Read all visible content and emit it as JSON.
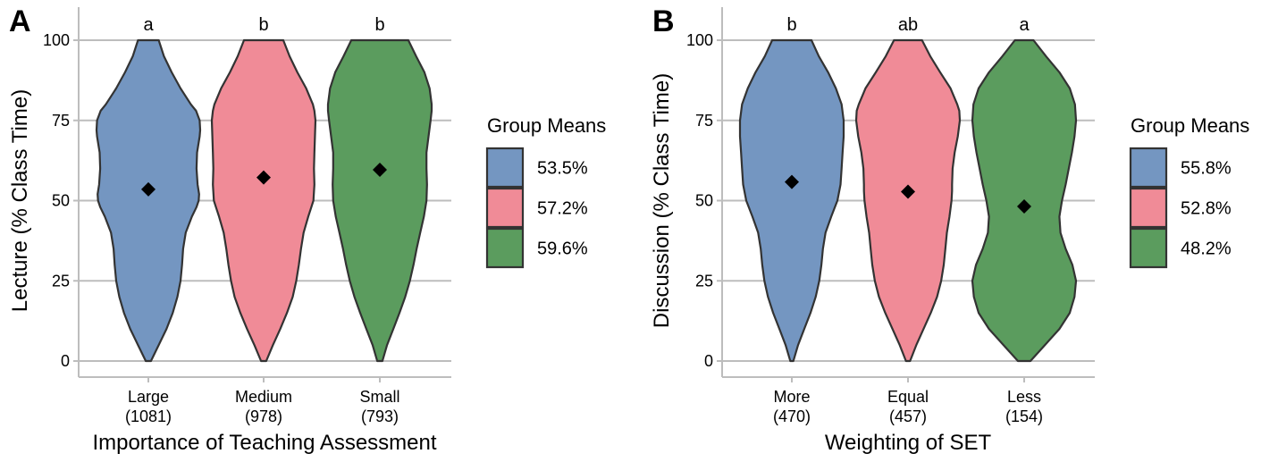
{
  "chart_data": [
    {
      "panel": "A",
      "type": "violin",
      "ylabel": "Lecture (% Class Time)",
      "xlabel": "Importance of Teaching Assessment",
      "ylim": [
        0,
        100
      ],
      "y_ticks": [
        "0",
        "25",
        "50",
        "75",
        "100"
      ],
      "grid": "horizontal",
      "legend_position": "right",
      "legend_title": "Group Means",
      "categories": [
        {
          "label": "Large",
          "n": "(1081)",
          "sig": "a",
          "mean": 53.5,
          "mean_label": "53.5%",
          "color": "#7496C1",
          "profile": [
            [
              0,
              0.05
            ],
            [
              5,
              0.2
            ],
            [
              10,
              0.35
            ],
            [
              15,
              0.47
            ],
            [
              20,
              0.56
            ],
            [
              25,
              0.62
            ],
            [
              30,
              0.65
            ],
            [
              35,
              0.67
            ],
            [
              40,
              0.72
            ],
            [
              45,
              0.84
            ],
            [
              48,
              0.93
            ],
            [
              50,
              0.97
            ],
            [
              52,
              0.98
            ],
            [
              55,
              0.95
            ],
            [
              60,
              0.93
            ],
            [
              65,
              0.94
            ],
            [
              70,
              0.99
            ],
            [
              72,
              1.0
            ],
            [
              75,
              0.99
            ],
            [
              78,
              0.92
            ],
            [
              80,
              0.82
            ],
            [
              85,
              0.62
            ],
            [
              90,
              0.45
            ],
            [
              95,
              0.3
            ],
            [
              100,
              0.2
            ]
          ]
        },
        {
          "label": "Medium",
          "n": "(978)",
          "sig": "b",
          "mean": 57.2,
          "mean_label": "57.2%",
          "color": "#F08B97",
          "profile": [
            [
              0,
              0.05
            ],
            [
              5,
              0.18
            ],
            [
              10,
              0.32
            ],
            [
              15,
              0.45
            ],
            [
              20,
              0.56
            ],
            [
              25,
              0.63
            ],
            [
              30,
              0.68
            ],
            [
              35,
              0.72
            ],
            [
              40,
              0.77
            ],
            [
              45,
              0.86
            ],
            [
              48,
              0.92
            ],
            [
              50,
              0.96
            ],
            [
              55,
              0.98
            ],
            [
              60,
              0.97
            ],
            [
              65,
              0.98
            ],
            [
              70,
              0.99
            ],
            [
              75,
              1.0
            ],
            [
              78,
              0.98
            ],
            [
              80,
              0.95
            ],
            [
              85,
              0.82
            ],
            [
              90,
              0.65
            ],
            [
              95,
              0.5
            ],
            [
              100,
              0.38
            ]
          ]
        },
        {
          "label": "Small",
          "n": "(793)",
          "sig": "b",
          "mean": 59.6,
          "mean_label": "59.6%",
          "color": "#5B9C5E",
          "profile": [
            [
              0,
              0.05
            ],
            [
              5,
              0.14
            ],
            [
              10,
              0.26
            ],
            [
              15,
              0.38
            ],
            [
              20,
              0.49
            ],
            [
              25,
              0.58
            ],
            [
              30,
              0.65
            ],
            [
              35,
              0.71
            ],
            [
              40,
              0.78
            ],
            [
              45,
              0.85
            ],
            [
              50,
              0.9
            ],
            [
              55,
              0.91
            ],
            [
              60,
              0.9
            ],
            [
              65,
              0.9
            ],
            [
              70,
              0.94
            ],
            [
              75,
              0.98
            ],
            [
              78,
              1.0
            ],
            [
              80,
              1.0
            ],
            [
              85,
              0.96
            ],
            [
              90,
              0.86
            ],
            [
              95,
              0.7
            ],
            [
              100,
              0.55
            ]
          ]
        }
      ]
    },
    {
      "panel": "B",
      "type": "violin",
      "ylabel": "Discussion (% Class Time)",
      "xlabel": "Weighting of SET",
      "ylim": [
        0,
        100
      ],
      "y_ticks": [
        "0",
        "25",
        "50",
        "75",
        "100"
      ],
      "grid": "horizontal",
      "legend_position": "right",
      "legend_title": "Group Means",
      "categories": [
        {
          "label": "More",
          "n": "(470)",
          "sig": "b",
          "mean": 55.8,
          "mean_label": "55.8%",
          "color": "#7496C1",
          "profile": [
            [
              0,
              0.03
            ],
            [
              5,
              0.12
            ],
            [
              10,
              0.24
            ],
            [
              15,
              0.36
            ],
            [
              20,
              0.46
            ],
            [
              25,
              0.53
            ],
            [
              30,
              0.57
            ],
            [
              35,
              0.6
            ],
            [
              40,
              0.65
            ],
            [
              45,
              0.76
            ],
            [
              50,
              0.88
            ],
            [
              55,
              0.94
            ],
            [
              60,
              0.96
            ],
            [
              65,
              0.98
            ],
            [
              70,
              1.0
            ],
            [
              75,
              1.0
            ],
            [
              80,
              0.96
            ],
            [
              85,
              0.85
            ],
            [
              90,
              0.7
            ],
            [
              95,
              0.52
            ],
            [
              100,
              0.38
            ]
          ]
        },
        {
          "label": "Equal",
          "n": "(457)",
          "sig": "ab",
          "mean": 52.8,
          "mean_label": "52.8%",
          "color": "#F08B97",
          "profile": [
            [
              0,
              0.04
            ],
            [
              5,
              0.16
            ],
            [
              10,
              0.3
            ],
            [
              15,
              0.44
            ],
            [
              20,
              0.56
            ],
            [
              25,
              0.64
            ],
            [
              30,
              0.69
            ],
            [
              35,
              0.72
            ],
            [
              40,
              0.75
            ],
            [
              45,
              0.8
            ],
            [
              50,
              0.84
            ],
            [
              53,
              0.85
            ],
            [
              55,
              0.85
            ],
            [
              60,
              0.86
            ],
            [
              65,
              0.9
            ],
            [
              70,
              0.96
            ],
            [
              75,
              1.0
            ],
            [
              78,
              0.99
            ],
            [
              80,
              0.95
            ],
            [
              85,
              0.82
            ],
            [
              90,
              0.62
            ],
            [
              95,
              0.43
            ],
            [
              100,
              0.27
            ]
          ]
        },
        {
          "label": "Less",
          "n": "(154)",
          "sig": "a",
          "mean": 48.2,
          "mean_label": "48.2%",
          "color": "#5B9C5E",
          "profile": [
            [
              0,
              0.12
            ],
            [
              5,
              0.4
            ],
            [
              10,
              0.68
            ],
            [
              15,
              0.88
            ],
            [
              20,
              0.97
            ],
            [
              25,
              1.0
            ],
            [
              30,
              0.93
            ],
            [
              35,
              0.8
            ],
            [
              40,
              0.7
            ],
            [
              45,
              0.68
            ],
            [
              50,
              0.73
            ],
            [
              55,
              0.8
            ],
            [
              60,
              0.86
            ],
            [
              65,
              0.92
            ],
            [
              70,
              0.97
            ],
            [
              75,
              1.0
            ],
            [
              80,
              0.98
            ],
            [
              85,
              0.88
            ],
            [
              90,
              0.68
            ],
            [
              95,
              0.42
            ],
            [
              100,
              0.18
            ]
          ]
        }
      ]
    }
  ]
}
